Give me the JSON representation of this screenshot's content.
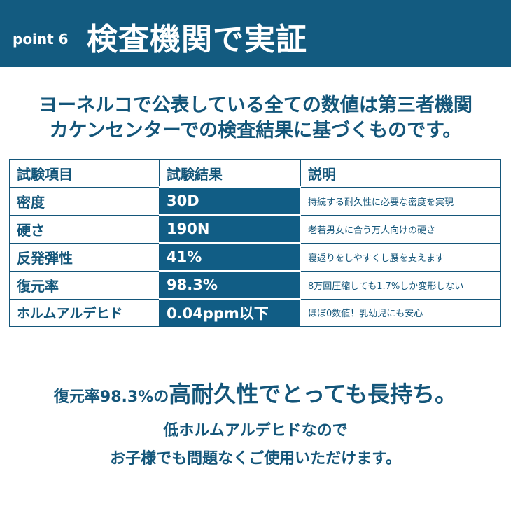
{
  "header": {
    "point_label": "point 6",
    "title": "検査機関で実証"
  },
  "intro": {
    "line1": "ヨーネルコで公表している全ての数値は第三者機関",
    "line2": "カケンセンターでの検査結果に基づくものです。"
  },
  "table": {
    "headers": [
      "試験項目",
      "試験結果",
      "説明"
    ],
    "rows": [
      {
        "item": "密度",
        "result": "30D",
        "desc": "持続する耐久性に必要な密度を実現"
      },
      {
        "item": "硬さ",
        "result": "190N",
        "desc": "老若男女に合う万人向けの硬さ"
      },
      {
        "item": "反発弾性",
        "result": "41%",
        "desc": "寝返りをしやすくし腰を支えます"
      },
      {
        "item": "復元率",
        "result": "98.3%",
        "desc": "8万回圧縮しても1.7%しか変形しない"
      },
      {
        "item": "ホルムアルデヒド",
        "result": "0.04ppm以下",
        "desc": "ほぼ0数値！乳幼児にも安心"
      }
    ]
  },
  "footer": {
    "line1_small": "復元率98.3%の",
    "line1_large": "高耐久性でとっても長持ち。",
    "line2": "低ホルムアルデヒドなので",
    "line3": "お子様でも問題なくご使用いただけます。"
  },
  "colors": {
    "brand": "#135b80"
  }
}
